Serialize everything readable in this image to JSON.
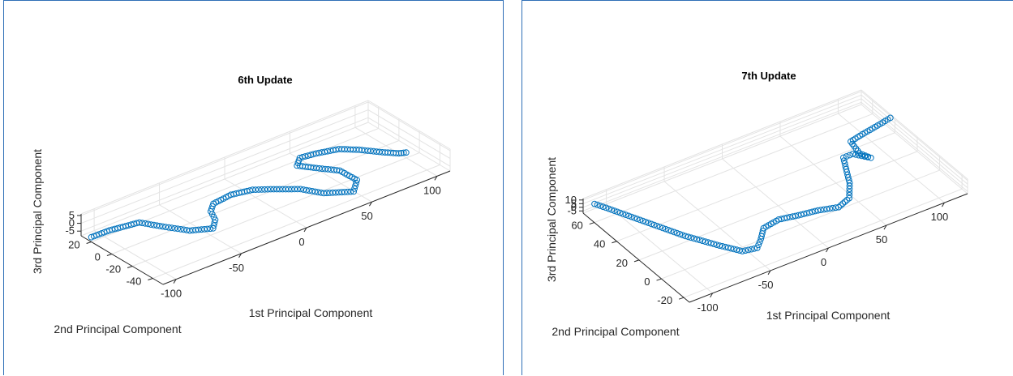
{
  "chart_data": [
    {
      "type": "scatter",
      "title": "6th Update",
      "xlabel": "1st Principal Component",
      "ylabel": "2nd Principal Component",
      "zlabel": "3rd Principal Component",
      "xlim": [
        -110,
        110
      ],
      "ylim": [
        -50,
        30
      ],
      "zlim": [
        -8,
        6
      ],
      "x_ticks": [
        -100,
        -50,
        0,
        50,
        100
      ],
      "y_ticks": [
        -40,
        -20,
        0,
        20
      ],
      "z_ticks": [
        -5,
        0,
        5
      ],
      "grid": true,
      "marker": "circle",
      "color": "#0072bd",
      "trajectory": [
        {
          "x": -110,
          "y": 20,
          "z": -5
        },
        {
          "x": -100,
          "y": 15,
          "z": -2
        },
        {
          "x": -85,
          "y": 5,
          "z": 2
        },
        {
          "x": -75,
          "y": -5,
          "z": 0
        },
        {
          "x": -62,
          "y": -15,
          "z": -3
        },
        {
          "x": -52,
          "y": -25,
          "z": -1
        },
        {
          "x": -48,
          "y": -22,
          "z": 2
        },
        {
          "x": -46,
          "y": -15,
          "z": 4
        },
        {
          "x": -40,
          "y": -10,
          "z": 5
        },
        {
          "x": -25,
          "y": -8,
          "z": 5
        },
        {
          "x": -10,
          "y": -10,
          "z": 4
        },
        {
          "x": 0,
          "y": -15,
          "z": 3
        },
        {
          "x": 15,
          "y": -25,
          "z": 2
        },
        {
          "x": 25,
          "y": -35,
          "z": 0
        },
        {
          "x": 40,
          "y": -45,
          "z": 0
        },
        {
          "x": 48,
          "y": -38,
          "z": 2
        },
        {
          "x": 45,
          "y": -25,
          "z": 4
        },
        {
          "x": 35,
          "y": -15,
          "z": 5
        },
        {
          "x": 28,
          "y": -5,
          "z": 5
        },
        {
          "x": 34,
          "y": 0,
          "z": 6
        },
        {
          "x": 45,
          "y": -2,
          "z": 6
        },
        {
          "x": 60,
          "y": -5,
          "z": 5
        },
        {
          "x": 70,
          "y": -12,
          "z": 4
        },
        {
          "x": 80,
          "y": -22,
          "z": 3
        },
        {
          "x": 88,
          "y": -28,
          "z": 2
        },
        {
          "x": 92,
          "y": -30,
          "z": 2
        }
      ]
    },
    {
      "type": "scatter",
      "title": "7th Update",
      "xlabel": "1st Principal Component",
      "ylabel": "2nd Principal Component",
      "zlabel": "3rd Principal Component",
      "xlim": [
        -120,
        120
      ],
      "ylim": [
        -25,
        70
      ],
      "zlim": [
        -8,
        12
      ],
      "x_ticks": [
        -100,
        -50,
        0,
        50,
        100
      ],
      "y_ticks": [
        -20,
        0,
        20,
        40,
        60
      ],
      "z_ticks": [
        -5,
        0,
        5,
        10
      ],
      "grid": true,
      "marker": "circle",
      "color": "#0072bd",
      "trajectory": [
        {
          "x": -115,
          "y": 65,
          "z": 8
        },
        {
          "x": -110,
          "y": 60,
          "z": 6
        },
        {
          "x": -95,
          "y": 40,
          "z": 3
        },
        {
          "x": -80,
          "y": 20,
          "z": 0
        },
        {
          "x": -65,
          "y": 5,
          "z": -3
        },
        {
          "x": -55,
          "y": -5,
          "z": -4
        },
        {
          "x": -45,
          "y": -8,
          "z": -2
        },
        {
          "x": -38,
          "y": -4,
          "z": 1
        },
        {
          "x": -30,
          "y": 2,
          "z": 3
        },
        {
          "x": -15,
          "y": 4,
          "z": 3
        },
        {
          "x": 0,
          "y": 2,
          "z": 2
        },
        {
          "x": 15,
          "y": 0,
          "z": 2
        },
        {
          "x": 30,
          "y": -3,
          "z": 1
        },
        {
          "x": 42,
          "y": 0,
          "z": 2
        },
        {
          "x": 52,
          "y": 10,
          "z": 4
        },
        {
          "x": 60,
          "y": 22,
          "z": 6
        },
        {
          "x": 64,
          "y": 28,
          "z": 8
        },
        {
          "x": 72,
          "y": 28,
          "z": 8
        },
        {
          "x": 80,
          "y": 20,
          "z": 8
        },
        {
          "x": 76,
          "y": 26,
          "z": 9
        },
        {
          "x": 78,
          "y": 36,
          "z": 11
        },
        {
          "x": 90,
          "y": 38,
          "z": 11
        },
        {
          "x": 105,
          "y": 40,
          "z": 11
        },
        {
          "x": 118,
          "y": 42,
          "z": 11
        }
      ]
    }
  ]
}
